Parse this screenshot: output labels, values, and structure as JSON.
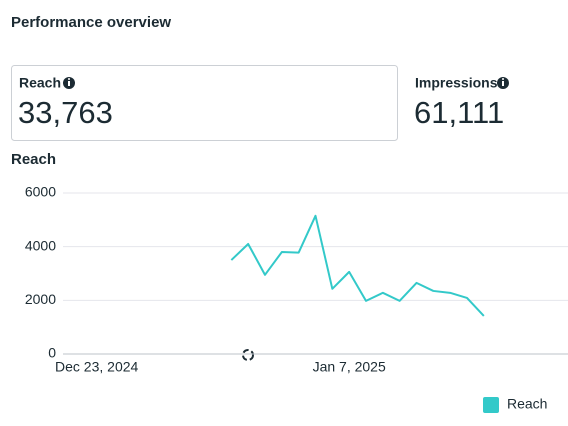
{
  "header": {
    "title": "Performance overview"
  },
  "metrics": [
    {
      "label": "Reach",
      "value": "33,763"
    },
    {
      "label": "Impressions",
      "value": "61,111"
    }
  ],
  "chart_data": {
    "type": "line",
    "title": "Reach",
    "x": [
      "2024-12-31",
      "2025-01-01",
      "2025-01-02",
      "2025-01-03",
      "2025-01-04",
      "2025-01-05",
      "2025-01-06",
      "2025-01-07",
      "2025-01-08",
      "2025-01-09",
      "2025-01-10",
      "2025-01-11",
      "2025-01-12",
      "2025-01-13",
      "2025-01-14",
      "2025-01-15"
    ],
    "series": [
      {
        "name": "Reach",
        "color": "#33c9c9",
        "values": [
          3500,
          4100,
          2950,
          3800,
          3780,
          5150,
          2430,
          3060,
          1980,
          2280,
          1980,
          2650,
          2350,
          2280,
          2090,
          1420
        ]
      }
    ],
    "xlim": [
      "2024-12-21",
      "2025-01-20"
    ],
    "xticks": [
      {
        "value": "2024-12-23",
        "label": "Dec 23, 2024"
      },
      {
        "value": "2025-01-07",
        "label": "Jan 7, 2025"
      }
    ],
    "ylim": [
      0,
      6000
    ],
    "yticks": [
      0,
      2000,
      4000,
      6000
    ],
    "grid": true,
    "legend": "bottom-right"
  }
}
